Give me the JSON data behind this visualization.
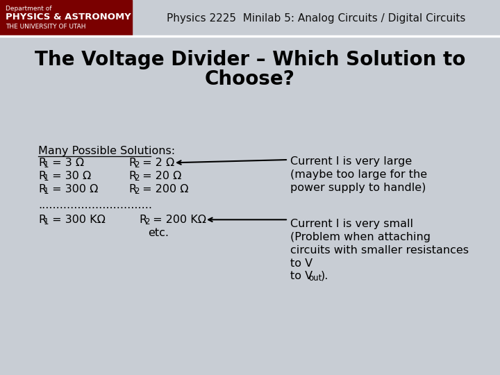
{
  "header_text": "Physics 2225  Minilab 5: Analog Circuits / Digital Circuits",
  "slide_bg": "#C8CDD4",
  "header_bg": "#8B0000",
  "logo_bg": "#7A0000",
  "header_label1": "Department of",
  "header_label2": "PHYSICS & ASTRONOMY",
  "header_label3": "THE UNIVERSITY OF UTAH",
  "title_line1": "The Voltage Divider – Which Solution to",
  "title_line2": "Choose?",
  "title_fontsize": 20,
  "underline_text": "Many Possible Solutions:",
  "dots": "................................",
  "etc_text": "etc.",
  "comment1_lines": [
    "Current I is very large",
    "(maybe too large for the",
    "power supply to handle)"
  ],
  "comment2_lines": [
    "Current I is very small",
    "(Problem when attaching",
    "circuits with smaller resistances",
    "to V"
  ],
  "comment2_sub": "out",
  "comment2_end": ").",
  "text_fontsize": 11.5,
  "body_color": "#000000",
  "header_fontsize": 11,
  "header_text_color": "#111111"
}
